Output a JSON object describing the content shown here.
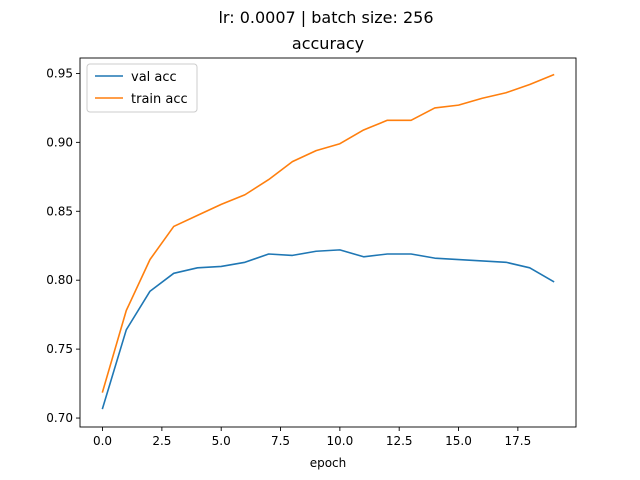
{
  "chart_data": {
    "type": "line",
    "suptitle": "lr: 0.0007 | batch size: 256",
    "title": "accuracy",
    "xlabel": "epoch",
    "ylabel": "",
    "x": [
      0,
      1,
      2,
      3,
      4,
      5,
      6,
      7,
      8,
      9,
      10,
      11,
      12,
      13,
      14,
      15,
      16,
      17,
      18,
      19
    ],
    "xlim": [
      -0.95,
      19.95
    ],
    "ylim": [
      0.6935,
      0.9612
    ],
    "xticks": [
      0.0,
      2.5,
      5.0,
      7.5,
      10.0,
      12.5,
      15.0,
      17.5
    ],
    "xtick_labels": [
      "0.0",
      "2.5",
      "5.0",
      "7.5",
      "10.0",
      "12.5",
      "15.0",
      "17.5"
    ],
    "yticks": [
      0.7,
      0.75,
      0.8,
      0.85,
      0.9,
      0.95
    ],
    "ytick_labels": [
      "0.70",
      "0.75",
      "0.80",
      "0.85",
      "0.90",
      "0.95"
    ],
    "grid": false,
    "legend_position": "upper-left",
    "series": [
      {
        "name": "val acc",
        "color": "#1f77b4",
        "values": [
          0.707,
          0.764,
          0.792,
          0.805,
          0.809,
          0.81,
          0.813,
          0.819,
          0.818,
          0.821,
          0.822,
          0.817,
          0.819,
          0.819,
          0.816,
          0.815,
          0.814,
          0.813,
          0.809,
          0.799
        ]
      },
      {
        "name": "train acc",
        "color": "#ff7f0e",
        "values": [
          0.719,
          0.778,
          0.815,
          0.839,
          0.847,
          0.855,
          0.862,
          0.873,
          0.886,
          0.894,
          0.899,
          0.909,
          0.916,
          0.916,
          0.925,
          0.927,
          0.932,
          0.936,
          0.942,
          0.949
        ]
      }
    ]
  }
}
